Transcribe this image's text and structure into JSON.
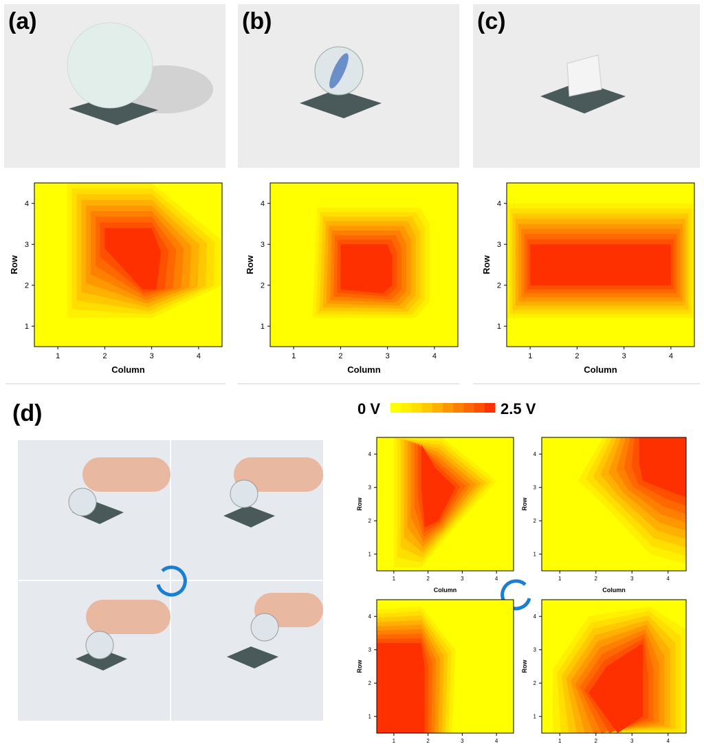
{
  "panels": [
    {
      "label": "(a)"
    },
    {
      "label": "(b)"
    },
    {
      "label": "(c)"
    },
    {
      "label": "(d)"
    }
  ],
  "plot": {
    "x_label": "Column",
    "y_label": "Row",
    "xlim": [
      0.5,
      4.5
    ],
    "ylim": [
      0.5,
      4.5
    ],
    "xticks": [
      1,
      2,
      3,
      4
    ],
    "yticks": [
      1,
      2,
      3,
      4
    ]
  },
  "colorbar": {
    "min_label": "0 V",
    "max_label": "2.5 V",
    "colors": [
      "#ffff00",
      "#fff000",
      "#ffde00",
      "#ffc800",
      "#ffb000",
      "#ff9800",
      "#ff8000",
      "#ff6800",
      "#ff5000",
      "#ff3000"
    ]
  }
}
